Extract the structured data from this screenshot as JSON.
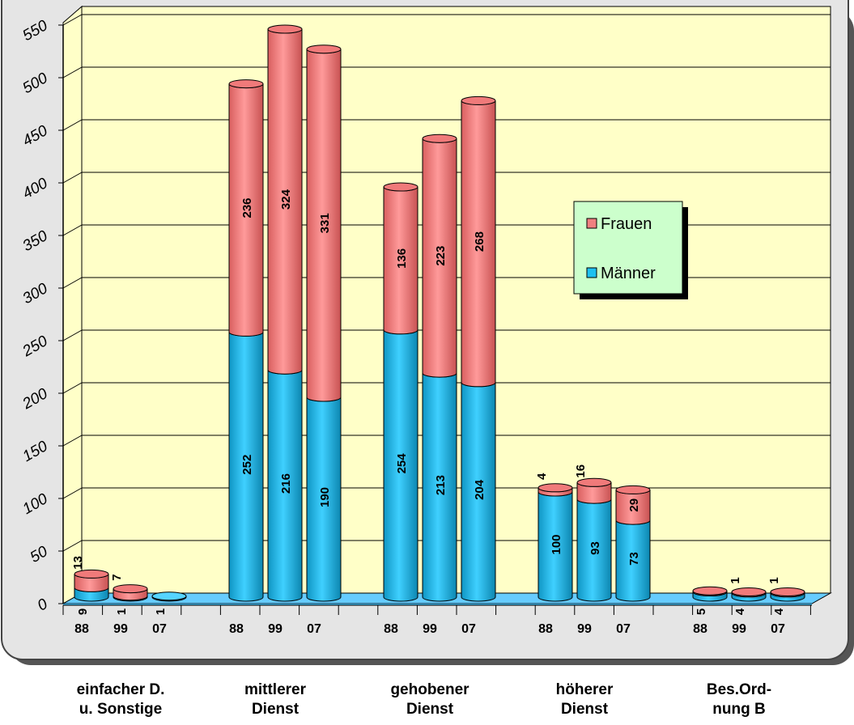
{
  "chart_data": {
    "type": "bar",
    "stacked": true,
    "style": "3d-cylinder",
    "title": "",
    "xlabel": "",
    "ylabel": "",
    "ylim": [
      0,
      550
    ],
    "yticks": [
      "0",
      "50",
      "100",
      "150",
      "200",
      "250",
      "300",
      "350",
      "400",
      "450",
      "500",
      "550"
    ],
    "grid": true,
    "legend_position": "right",
    "groups": [
      {
        "label_line1": "einfacher D.",
        "label_line2": "u. Sonstige",
        "years": [
          "88",
          "99",
          "07"
        ]
      },
      {
        "label_line1": "mittlerer",
        "label_line2": "Dienst",
        "years": [
          "88",
          "99",
          "07"
        ]
      },
      {
        "label_line1": "gehobener",
        "label_line2": "Dienst",
        "years": [
          "88",
          "99",
          "07"
        ]
      },
      {
        "label_line1": "höherer",
        "label_line2": "Dienst",
        "years": [
          "88",
          "99",
          "07"
        ]
      },
      {
        "label_line1": "Bes.Ord-",
        "label_line2": "nung B",
        "years": [
          "88",
          "99",
          "07"
        ]
      }
    ],
    "series": [
      {
        "name": "Männer",
        "color": "#1ec0f0",
        "values": [
          9,
          1,
          1,
          252,
          216,
          190,
          254,
          213,
          204,
          100,
          93,
          73,
          5,
          4,
          4
        ]
      },
      {
        "name": "Frauen",
        "color": "#f08080",
        "values": [
          13,
          7,
          0,
          236,
          324,
          331,
          136,
          223,
          268,
          4,
          16,
          29,
          1,
          1,
          1
        ]
      }
    ],
    "value_labels": {
      "Männer": [
        "9",
        "1",
        "1",
        "252",
        "216",
        "190",
        "254",
        "213",
        "204",
        "100",
        "93",
        "73",
        "5",
        "4",
        "4"
      ],
      "Frauen": [
        "13",
        "7",
        "",
        "236",
        "324",
        "331",
        "136",
        "223",
        "268",
        "4",
        "16",
        "29",
        "",
        "1",
        "1"
      ]
    },
    "legend": [
      "Frauen",
      "Männer"
    ],
    "colors": {
      "plot_background": "#ffffc8",
      "floor": "#66ccff",
      "frame_background": "#e5e5e5",
      "male": "#1ec0f0",
      "female": "#f08080"
    }
  }
}
